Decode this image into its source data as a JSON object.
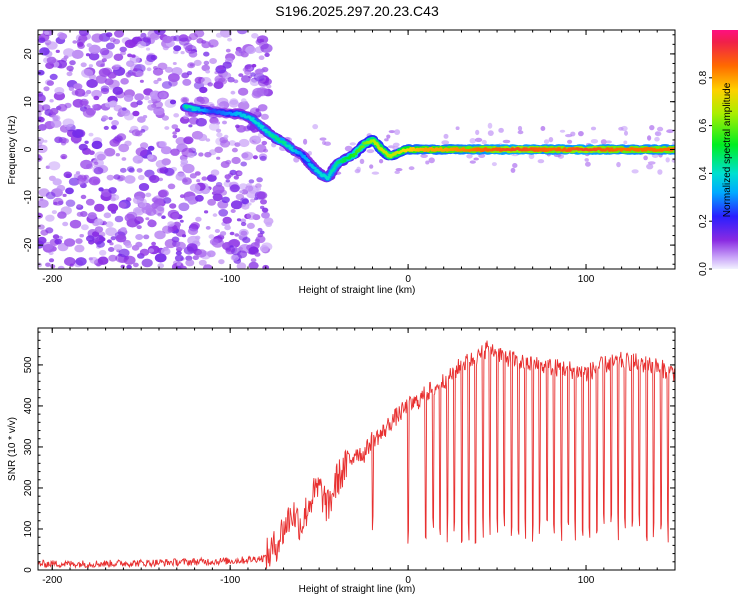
{
  "title": "S196.2025.297.20.23.C43",
  "chart_data": [
    {
      "type": "heatmap",
      "xlabel": "Height of straight line (km)",
      "ylabel": "Frequency (Hz)",
      "xlim": [
        -208,
        150
      ],
      "ylim": [
        -25,
        25
      ],
      "xticks": [
        -200,
        -100,
        0,
        100
      ],
      "xtick_labels": [
        "-200",
        "-100",
        "0",
        "100"
      ],
      "yticks": [
        -20,
        -10,
        0,
        10,
        20
      ],
      "ytick_labels": [
        "-20",
        "-10",
        "0",
        "10",
        "20"
      ],
      "ridge": {
        "x": [
          -125,
          -120,
          -110,
          -100,
          -95,
          -88,
          -80,
          -75,
          -70,
          -65,
          -60,
          -55,
          -50,
          -45,
          -40,
          -35,
          -30,
          -25,
          -20,
          -15,
          -10,
          -5,
          0,
          10,
          20,
          40,
          60,
          80,
          100,
          120,
          150
        ],
        "y": [
          9,
          8.5,
          8,
          7.5,
          7.5,
          6.5,
          4,
          2.5,
          1.5,
          0,
          -1,
          -3,
          -5,
          -6,
          -3,
          -2,
          -1,
          1,
          2,
          0,
          -1.5,
          -0.5,
          0,
          0,
          0,
          0,
          0,
          0,
          0,
          0,
          0
        ],
        "amplitude": [
          0.45,
          0.4,
          0.25,
          0.3,
          0.35,
          0.4,
          0.4,
          0.45,
          0.45,
          0.4,
          0.3,
          0.35,
          0.4,
          0.4,
          0.45,
          0.5,
          0.55,
          0.6,
          0.65,
          0.7,
          0.65,
          0.7,
          0.75,
          0.8,
          0.8,
          0.85,
          0.9,
          0.85,
          0.9,
          0.85,
          0.85
        ]
      },
      "noise_region_x": [
        -208,
        -78
      ]
    },
    {
      "type": "line",
      "color": "#e83030",
      "xlabel": "Height of straight line (km)",
      "ylabel": "SNR (10 * v/v)",
      "xlim": [
        -208,
        150
      ],
      "ylim": [
        0,
        590
      ],
      "xticks": [
        -200,
        -100,
        0,
        100
      ],
      "xtick_labels": [
        "-200",
        "-100",
        "0",
        "100"
      ],
      "yticks": [
        0,
        100,
        200,
        300,
        400,
        500
      ],
      "ytick_labels": [
        "0",
        "100",
        "200",
        "300",
        "400",
        "500"
      ],
      "series": [
        {
          "name": "SNR",
          "x": [
            -208,
            -180,
            -150,
            -120,
            -100,
            -90,
            -80,
            -75,
            -70,
            -65,
            -60,
            -55,
            -50,
            -45,
            -40,
            -35,
            -30,
            -25,
            -20,
            -15,
            -10,
            -5,
            0,
            5,
            10,
            15,
            20,
            25,
            30,
            40,
            45,
            50,
            55,
            60,
            70,
            80,
            90,
            100,
            110,
            120,
            130,
            140,
            150
          ],
          "y": [
            15,
            15,
            17,
            20,
            22,
            25,
            30,
            55,
            100,
            140,
            110,
            170,
            200,
            150,
            220,
            250,
            290,
            280,
            320,
            330,
            360,
            380,
            400,
            410,
            430,
            445,
            460,
            480,
            500,
            520,
            545,
            530,
            520,
            510,
            500,
            495,
            490,
            480,
            500,
            510,
            505,
            495,
            480
          ]
        }
      ],
      "dropouts_x": [
        -20,
        0,
        10,
        14,
        18,
        22,
        26,
        30,
        34,
        38,
        42,
        46,
        50,
        54,
        58,
        62,
        66,
        70,
        74,
        78,
        82,
        86,
        90,
        94,
        98,
        102,
        106,
        110,
        114,
        118,
        122,
        126,
        130,
        134,
        138,
        142,
        146
      ]
    }
  ],
  "colorbar": {
    "label": "Normalized spectral amplitude",
    "range": [
      0,
      1
    ],
    "ticks": [
      0.0,
      0.2,
      0.4,
      0.6,
      0.8
    ],
    "tick_labels": [
      "0.0",
      "0.2",
      "0.4",
      "0.6",
      "0.8"
    ]
  }
}
